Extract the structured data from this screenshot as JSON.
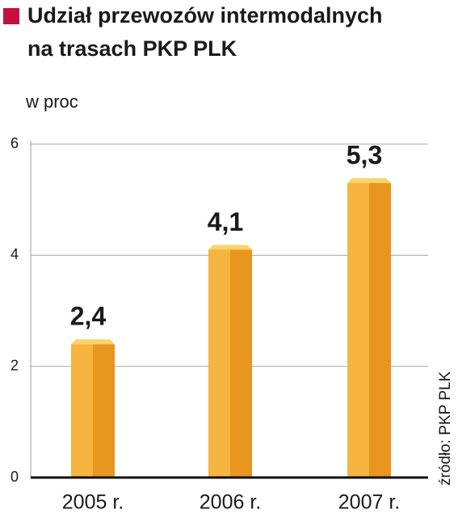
{
  "chart_data": {
    "type": "bar",
    "title": [
      "Udział przewozów intermodalnych",
      "na trasach PKP PLK"
    ],
    "unit_label": "w proc",
    "source": "źródło: PKP PLK",
    "categories": [
      "2005 r.",
      "2006 r.",
      "2007 r."
    ],
    "values": [
      2.4,
      4.1,
      5.3
    ],
    "value_labels": [
      "2,4",
      "4,1",
      "5,3"
    ],
    "value_label_colors": [
      "#1a1a1a",
      "#1a1a1a",
      "#c4123c"
    ],
    "color": "#f5b540",
    "ylim": [
      0,
      6
    ],
    "yticks": [
      0,
      2,
      4,
      6
    ],
    "grid": true
  }
}
